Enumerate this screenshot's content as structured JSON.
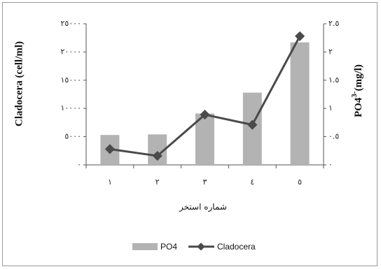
{
  "chart_data": {
    "type": "bar",
    "categories": [
      "١",
      "٢",
      "٣",
      "٤",
      "٥"
    ],
    "series": [
      {
        "name": "PO4",
        "type": "bar",
        "axis": "right",
        "values": [
          0.53,
          0.54,
          0.91,
          1.28,
          2.17
        ],
        "color": "#b3b3b3"
      },
      {
        "name": "Cladocera",
        "type": "line",
        "axis": "left",
        "values": [
          2800,
          1600,
          8900,
          7100,
          22800
        ],
        "color": "#4a4a4a"
      }
    ],
    "y_left": {
      "label": "Cladocera (cell/ml)",
      "ylim": [
        0,
        25000
      ],
      "ticks": [
        "٠",
        "٥٠٠٠",
        "١٠٠٠٠",
        "١٥٠٠٠",
        "٢٠٠٠٠",
        "٢٥٠٠٠"
      ]
    },
    "y_right": {
      "label": "PO4",
      "label_sup": "3-",
      "label_unit": "(mg/l)",
      "ylim": [
        0,
        2.5
      ],
      "ticks": [
        "٠",
        "٠.٥",
        "١",
        "١.٥",
        "٢",
        "٢.٥"
      ]
    },
    "xlabel": "شماره استخر",
    "legend": {
      "position": "bottom",
      "items": [
        "PO4",
        "Cladocera"
      ]
    },
    "grid": false
  }
}
